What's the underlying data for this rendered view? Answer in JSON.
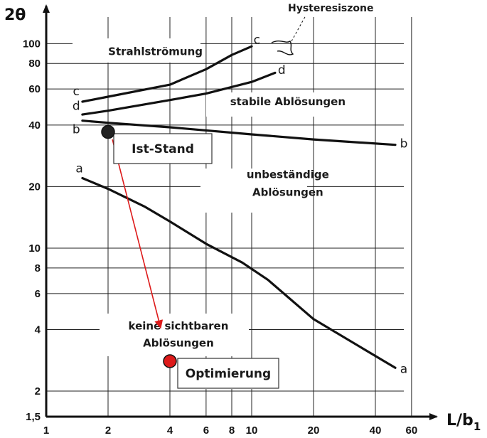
{
  "chart_data": {
    "type": "line",
    "title": "",
    "xlabel": "L/b",
    "xlabel_sub": "1",
    "ylabel": "2θ",
    "xscale": "log",
    "yscale": "log",
    "xlim": [
      1,
      65
    ],
    "ylim": [
      1.5,
      170
    ],
    "grid": true,
    "xticks": [
      1,
      2,
      4,
      6,
      8,
      10,
      20,
      40,
      60
    ],
    "xtick_labels": [
      "1",
      "2",
      "4",
      "6",
      "8",
      "10",
      "20",
      "40",
      "60"
    ],
    "yticks": [
      1.5,
      2,
      4,
      6,
      8,
      10,
      20,
      40,
      60,
      80,
      100
    ],
    "ytick_labels": [
      "1,5",
      "2",
      "4",
      "6",
      "8",
      "10",
      "20",
      "40",
      "60",
      "80",
      "100"
    ],
    "series": [
      {
        "name": "a",
        "x": [
          1.5,
          2,
          3,
          4,
          6,
          9,
          12,
          20,
          50
        ],
        "y": [
          22,
          19.5,
          16,
          13.5,
          10.5,
          8.5,
          7,
          4.5,
          2.6
        ]
      },
      {
        "name": "b",
        "x": [
          1.5,
          2,
          4,
          10,
          20,
          50
        ],
        "y": [
          42,
          41,
          39,
          36,
          34,
          32
        ]
      },
      {
        "name": "c",
        "x": [
          1.5,
          2,
          4,
          6,
          8,
          10
        ],
        "y": [
          52,
          55,
          63,
          75,
          88,
          97
        ]
      },
      {
        "name": "d",
        "x": [
          1.5,
          2,
          4,
          6,
          10,
          13
        ],
        "y": [
          45,
          47,
          53,
          57,
          65,
          72
        ]
      }
    ],
    "curve_end_labels": [
      {
        "text": "a",
        "x": 1.45,
        "y": 23.5
      },
      {
        "text": "a",
        "x": 55,
        "y": 2.45
      },
      {
        "text": "b",
        "x": 1.4,
        "y": 36.5
      },
      {
        "text": "b",
        "x": 55,
        "y": 31
      },
      {
        "text": "c",
        "x": 1.4,
        "y": 56
      },
      {
        "text": "c",
        "x": 10.6,
        "y": 100
      },
      {
        "text": "d",
        "x": 1.4,
        "y": 47.5
      },
      {
        "text": "d",
        "x": 14,
        "y": 71
      }
    ],
    "regions": [
      {
        "text": "Strahlströmung",
        "x": 3.4,
        "y": 88
      },
      {
        "text": "stabile Ablösungen",
        "x": 15,
        "y": 50
      },
      {
        "text": "unbeständige",
        "x": 15,
        "y": 22
      },
      {
        "text": "Ablösungen",
        "x": 15,
        "y": 18
      },
      {
        "text": "keine sichtbaren",
        "x": 4.4,
        "y": 4
      },
      {
        "text": "Ablösungen",
        "x": 4.4,
        "y": 3.3
      }
    ],
    "hysteresis_label": {
      "text": "Hysteresiszone"
    },
    "points": [
      {
        "name": "Ist-Stand",
        "x": 2,
        "y": 37,
        "color": "#222222"
      },
      {
        "name": "Optimierung",
        "x": 4,
        "y": 2.8,
        "color": "#dd1a1a"
      }
    ],
    "arrow": {
      "from": [
        2.1,
        34
      ],
      "to": [
        3.6,
        4.1
      ],
      "color": "#dd1a1a"
    }
  }
}
